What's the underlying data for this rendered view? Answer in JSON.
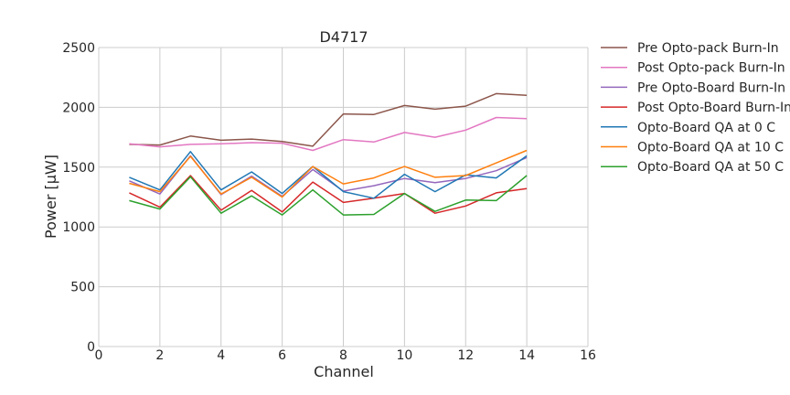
{
  "chart_data": {
    "type": "line",
    "title": "D4717",
    "xlabel": "Channel",
    "ylabel": "Power [μW]",
    "xlim": [
      0,
      16
    ],
    "ylim": [
      0,
      2500
    ],
    "xticks": [
      0,
      2,
      4,
      6,
      8,
      10,
      12,
      14,
      16
    ],
    "yticks": [
      0,
      500,
      1000,
      1500,
      2000,
      2500
    ],
    "grid": true,
    "legend_position": "outside-right",
    "x": [
      1,
      2,
      3,
      4,
      5,
      6,
      7,
      8,
      9,
      10,
      11,
      12,
      13,
      14
    ],
    "series": [
      {
        "name": "Pre Opto-pack Burn-In",
        "color": "#8c564b",
        "values": [
          1690,
          1685,
          1760,
          1725,
          1735,
          1715,
          1675,
          1945,
          1940,
          2015,
          1985,
          2010,
          2115,
          2100
        ]
      },
      {
        "name": "Post Opto-pack Burn-In",
        "color": "#e377c2",
        "values": [
          1695,
          1670,
          1690,
          1695,
          1705,
          1700,
          1640,
          1730,
          1710,
          1790,
          1750,
          1810,
          1915,
          1905
        ]
      },
      {
        "name": "Pre Opto-Board Burn-In",
        "color": "#9467bd",
        "values": [
          1385,
          1275,
          1595,
          1270,
          1425,
          1255,
          1480,
          1300,
          1345,
          1405,
          1370,
          1405,
          1470,
          1580
        ]
      },
      {
        "name": "Post Opto-Board Burn-In",
        "color": "#d62728",
        "values": [
          1285,
          1165,
          1430,
          1140,
          1305,
          1125,
          1375,
          1205,
          1240,
          1280,
          1115,
          1175,
          1285,
          1320
        ]
      },
      {
        "name": "Opto-Board QA at 0 C",
        "color": "#1f77b4",
        "values": [
          1415,
          1310,
          1630,
          1310,
          1460,
          1280,
          1505,
          1295,
          1240,
          1440,
          1295,
          1435,
          1410,
          1595
        ]
      },
      {
        "name": "Opto-Board QA at 10 C",
        "color": "#ff7f0e",
        "values": [
          1365,
          1295,
          1590,
          1275,
          1415,
          1250,
          1505,
          1360,
          1410,
          1505,
          1415,
          1430,
          1535,
          1640
        ]
      },
      {
        "name": "Opto-Board QA at 50 C",
        "color": "#2ca02c",
        "values": [
          1220,
          1150,
          1420,
          1115,
          1260,
          1100,
          1310,
          1100,
          1105,
          1280,
          1130,
          1225,
          1220,
          1430
        ]
      }
    ]
  }
}
